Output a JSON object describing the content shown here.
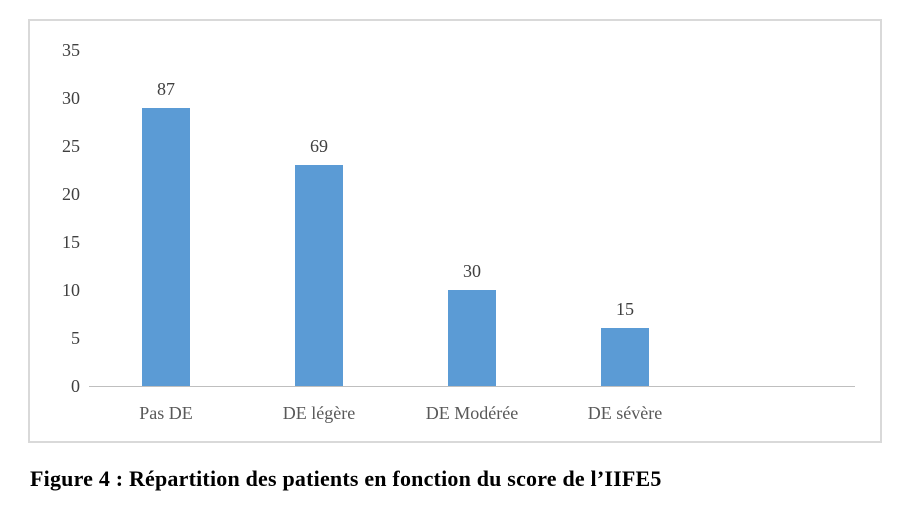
{
  "figure": {
    "caption": "Figure 4 : Répartition des patients en fonction du score de l’IIFE5"
  },
  "chart_data": {
    "type": "bar",
    "title": "",
    "categories": [
      "Pas DE",
      "DE légère",
      "DE Modérée",
      "DE sévère"
    ],
    "values": [
      87,
      69,
      30,
      15
    ],
    "data_labels": [
      "87",
      "69",
      "30",
      "15"
    ],
    "bar_axis_heights": [
      29,
      23,
      10,
      6
    ],
    "xlabel": "",
    "ylabel": "",
    "ylim": [
      0,
      35
    ],
    "yticks": [
      "0",
      "5",
      "10",
      "15",
      "20",
      "25",
      "30",
      "35"
    ],
    "grid": false,
    "legend": "none",
    "colors": {
      "bar": "#5B9BD5",
      "axis_line": "#BFBFBF",
      "frame_border": "#D9D9D9",
      "tick_text": "#404040",
      "category_text": "#595959",
      "background": "#FFFFFF"
    }
  }
}
